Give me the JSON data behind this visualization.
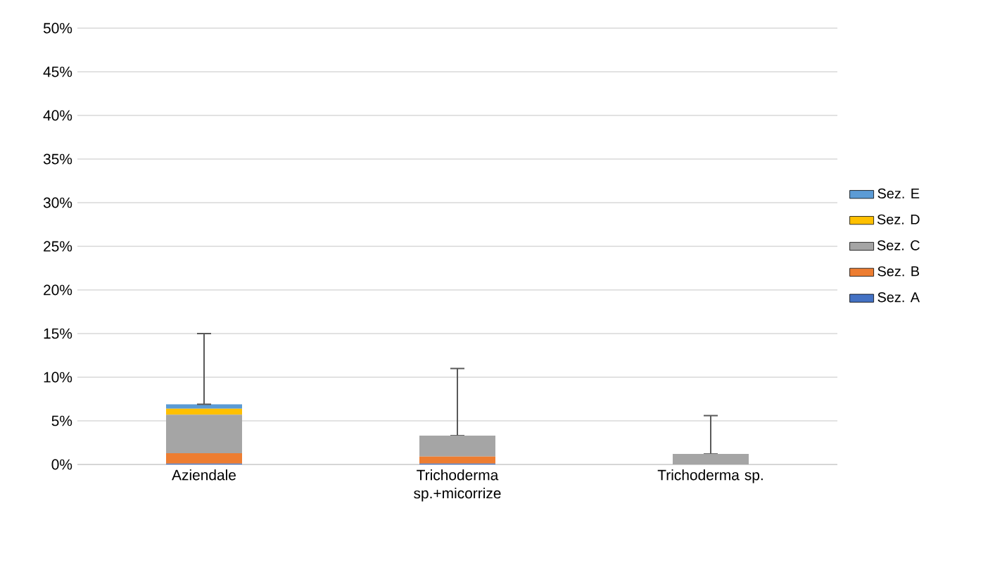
{
  "chart_data": {
    "type": "bar",
    "stacked": true,
    "categories": [
      "Aziendale",
      "Trichoderma sp.+micorrize",
      "Trichoderma sp."
    ],
    "series": [
      {
        "name": "Sez. A",
        "color": "#4472c4",
        "values": [
          0.1,
          0.1,
          0
        ]
      },
      {
        "name": "Sez. B",
        "color": "#ed7d31",
        "values": [
          1.2,
          0.8,
          0
        ]
      },
      {
        "name": "Sez. C",
        "color": "#a5a5a5",
        "values": [
          4.4,
          2.4,
          1.2
        ]
      },
      {
        "name": "Sez. D",
        "color": "#ffc000",
        "values": [
          0.7,
          0,
          0
        ]
      },
      {
        "name": "Sez. E",
        "color": "#5b9bd5",
        "values": [
          0.5,
          0,
          0
        ],
        "errors": [
          [
            6.9,
            15
          ],
          [
            3.3,
            11
          ],
          [
            1.2,
            5.6
          ]
        ]
      }
    ],
    "ylim": [
      0,
      50
    ],
    "yticks": [
      {
        "value": 0,
        "label": "0%"
      },
      {
        "value": 5,
        "label": "5%"
      },
      {
        "value": 10,
        "label": "10%"
      },
      {
        "value": 15,
        "label": "15%"
      },
      {
        "value": 20,
        "label": "20%"
      },
      {
        "value": 25,
        "label": "25%"
      },
      {
        "value": 30,
        "label": "30%"
      },
      {
        "value": 35,
        "label": "35%"
      },
      {
        "value": 40,
        "label": "40%"
      },
      {
        "value": 45,
        "label": "45%"
      },
      {
        "value": 50,
        "label": "50%"
      }
    ],
    "grid": "y",
    "legend": "right"
  }
}
